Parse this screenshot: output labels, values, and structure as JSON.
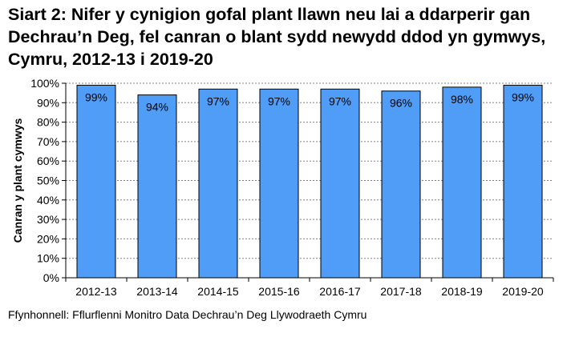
{
  "title": "Siart 2: Nifer y cynigion gofal plant llawn neu lai a ddarperir gan Dechrau’n Deg, fel canran o blant sydd newydd ddod yn gymwys, Cymru, 2012-13 i 2019-20",
  "source": "Ffynhonnell: Fflurflenni Monitro Data Dechrau’n Deg Llywodraeth Cymru",
  "chart_data": {
    "type": "bar",
    "title": "Siart 2: Nifer y cynigion gofal plant llawn neu lai a ddarperir gan Dechrau’n Deg, fel canran o blant sydd newydd ddod yn gymwys, Cymru, 2012-13 i 2019-20",
    "xlabel": "",
    "ylabel": "Canran y plant cymwys",
    "categories": [
      "2012-13",
      "2013-14",
      "2014-15",
      "2015-16",
      "2016-17",
      "2017-18",
      "2018-19",
      "2019-20"
    ],
    "values": [
      99,
      94,
      97,
      97,
      97,
      96,
      98,
      99
    ],
    "data_labels": [
      "99%",
      "94%",
      "97%",
      "97%",
      "97%",
      "96%",
      "98%",
      "99%"
    ],
    "ylim": [
      0,
      100
    ],
    "yticks": [
      "0%",
      "10%",
      "20%",
      "30%",
      "40%",
      "50%",
      "60%",
      "70%",
      "80%",
      "90%",
      "100%"
    ],
    "grid": true,
    "legend": "none",
    "colors": {
      "bar": "#4F9DF7",
      "bar_border": "#000000",
      "grid": "#808080"
    }
  }
}
